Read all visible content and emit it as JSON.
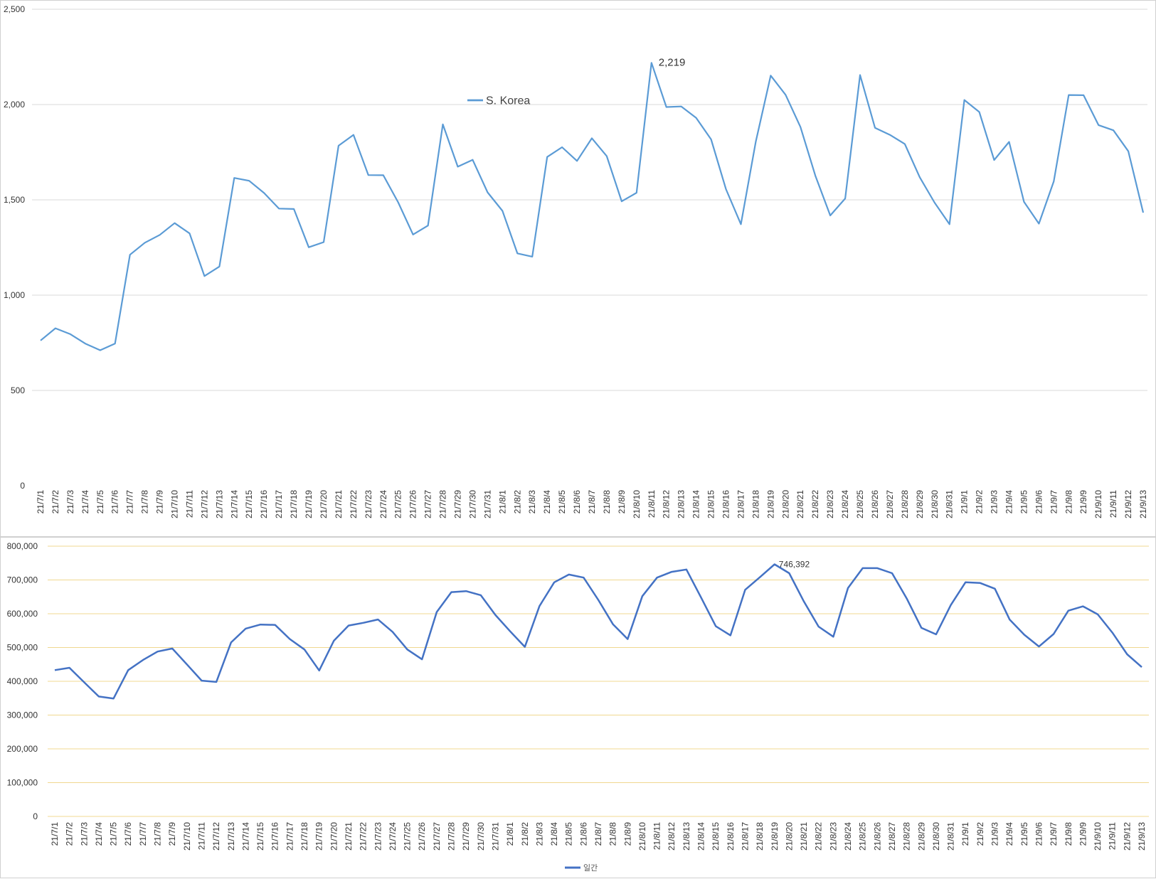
{
  "chart_data": [
    {
      "type": "line",
      "title": "",
      "xlabel": "",
      "ylabel": "",
      "ylim": [
        0,
        2500
      ],
      "yticks": [
        "0",
        "500",
        "1,000",
        "1,500",
        "2,000",
        "2,500"
      ],
      "grid": true,
      "legend": {
        "position": "upper-middle"
      },
      "categories": [
        "21/7/1",
        "21/7/2",
        "21/7/3",
        "21/7/4",
        "21/7/5",
        "21/7/6",
        "21/7/7",
        "21/7/8",
        "21/7/9",
        "21/7/10",
        "21/7/11",
        "21/7/12",
        "21/7/13",
        "21/7/14",
        "21/7/15",
        "21/7/16",
        "21/7/17",
        "21/7/18",
        "21/7/19",
        "21/7/20",
        "21/7/21",
        "21/7/22",
        "21/7/23",
        "21/7/24",
        "21/7/25",
        "21/7/26",
        "21/7/27",
        "21/7/28",
        "21/7/29",
        "21/7/30",
        "21/7/31",
        "21/8/1",
        "21/8/2",
        "21/8/3",
        "21/8/4",
        "21/8/5",
        "21/8/6",
        "21/8/7",
        "21/8/8",
        "21/8/9",
        "21/8/10",
        "21/8/11",
        "21/8/12",
        "21/8/13",
        "21/8/14",
        "21/8/15",
        "21/8/16",
        "21/8/17",
        "21/8/18",
        "21/8/19",
        "21/8/20",
        "21/8/21",
        "21/8/22",
        "21/8/23",
        "21/8/24",
        "21/8/25",
        "21/8/26",
        "21/8/27",
        "21/8/28",
        "21/8/29",
        "21/8/30",
        "21/8/31",
        "21/9/1",
        "21/9/2",
        "21/9/3",
        "21/9/4",
        "21/9/5",
        "21/9/6",
        "21/9/7",
        "21/9/8",
        "21/9/9",
        "21/9/10",
        "21/9/11",
        "21/9/12",
        "21/9/13"
      ],
      "series": [
        {
          "name": "S. Korea",
          "color": "#5b9bd5",
          "values": [
            762,
            826,
            795,
            746,
            711,
            746,
            1212,
            1275,
            1316,
            1378,
            1324,
            1100,
            1150,
            1615,
            1600,
            1536,
            1454,
            1452,
            1251,
            1278,
            1784,
            1841,
            1630,
            1629,
            1487,
            1318,
            1365,
            1896,
            1674,
            1710,
            1539,
            1442,
            1219,
            1202,
            1725,
            1776,
            1704,
            1823,
            1729,
            1492,
            1537,
            2219,
            1987,
            1990,
            1930,
            1817,
            1556,
            1372,
            1805,
            2152,
            2051,
            1882,
            1626,
            1418,
            1507,
            2155,
            1878,
            1841,
            1793,
            1619,
            1485,
            1372,
            2024,
            1961,
            1709,
            1804,
            1490,
            1375,
            1597,
            2050,
            2049,
            1892,
            1865,
            1755,
            1433
          ]
        }
      ],
      "annotations": [
        {
          "category": "21/8/11",
          "text": "2,219"
        }
      ]
    },
    {
      "type": "line",
      "title": "",
      "xlabel": "",
      "ylabel": "",
      "ylim": [
        0,
        800000
      ],
      "yticks": [
        "0",
        "100,000",
        "200,000",
        "300,000",
        "400,000",
        "500,000",
        "600,000",
        "700,000",
        "800,000"
      ],
      "grid": true,
      "legend": {
        "position": "bottom"
      },
      "categories": [
        "21/7/1",
        "21/7/2",
        "21/7/3",
        "21/7/4",
        "21/7/5",
        "21/7/6",
        "21/7/7",
        "21/7/8",
        "21/7/9",
        "21/7/10",
        "21/7/11",
        "21/7/12",
        "21/7/13",
        "21/7/14",
        "21/7/15",
        "21/7/16",
        "21/7/17",
        "21/7/18",
        "21/7/19",
        "21/7/20",
        "21/7/21",
        "21/7/22",
        "21/7/23",
        "21/7/24",
        "21/7/25",
        "21/7/26",
        "21/7/27",
        "21/7/28",
        "21/7/29",
        "21/7/30",
        "21/7/31",
        "21/8/1",
        "21/8/2",
        "21/8/3",
        "21/8/4",
        "21/8/5",
        "21/8/6",
        "21/8/7",
        "21/8/8",
        "21/8/9",
        "21/8/10",
        "21/8/11",
        "21/8/12",
        "21/8/13",
        "21/8/14",
        "21/8/15",
        "21/8/16",
        "21/8/17",
        "21/8/18",
        "21/8/19",
        "21/8/20",
        "21/8/21",
        "21/8/22",
        "21/8/23",
        "21/8/24",
        "21/8/25",
        "21/8/26",
        "21/8/27",
        "21/8/28",
        "21/8/29",
        "21/8/30",
        "21/8/31",
        "21/9/1",
        "21/9/2",
        "21/9/3",
        "21/9/4",
        "21/9/5",
        "21/9/6",
        "21/9/7",
        "21/9/8",
        "21/9/9",
        "21/9/10",
        "21/9/11",
        "21/9/12",
        "21/9/13"
      ],
      "series": [
        {
          "name": "일간",
          "color": "#4472c4",
          "values": [
            433000,
            440000,
            397000,
            355000,
            349000,
            433000,
            463000,
            488000,
            497000,
            450000,
            402000,
            398000,
            515000,
            556000,
            568000,
            567000,
            525000,
            494000,
            432000,
            520000,
            565000,
            573000,
            583000,
            546000,
            494000,
            465000,
            605000,
            664000,
            667000,
            655000,
            596000,
            548000,
            502000,
            623000,
            693000,
            716000,
            707000,
            641000,
            569000,
            525000,
            652000,
            707000,
            724000,
            731000,
            648000,
            563000,
            536000,
            671000,
            708000,
            746392,
            720000,
            636000,
            562000,
            532000,
            676000,
            735000,
            735000,
            720000,
            645000,
            558000,
            539000,
            626000,
            693000,
            691000,
            674000,
            583000,
            538000,
            503000,
            540000,
            609000,
            622000,
            598000,
            544000,
            480000,
            442000
          ]
        }
      ],
      "annotations": [
        {
          "category": "21/8/19",
          "text": "746,392"
        }
      ]
    }
  ]
}
